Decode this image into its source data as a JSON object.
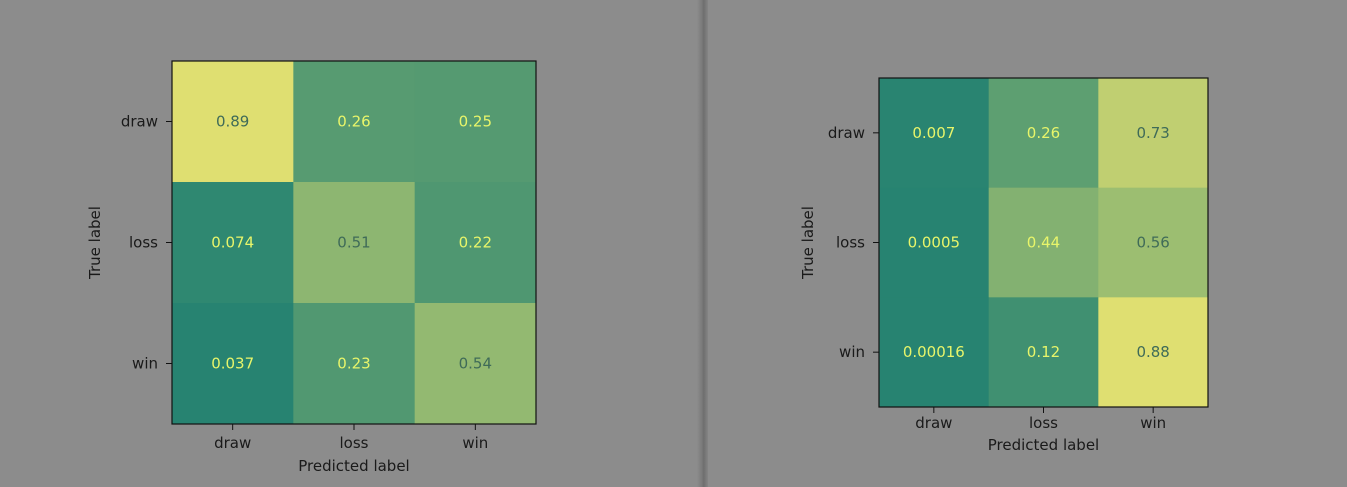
{
  "chart_data": [
    {
      "type": "heatmap",
      "title": "",
      "xlabel": "Predicted label",
      "ylabel": "True label",
      "x_categories": [
        "draw",
        "loss",
        "win"
      ],
      "y_categories": [
        "draw",
        "loss",
        "win"
      ],
      "values": [
        [
          0.89,
          0.26,
          0.25
        ],
        [
          0.074,
          0.51,
          0.22
        ],
        [
          0.037,
          0.23,
          0.54
        ]
      ],
      "labels": [
        [
          "0.89",
          "0.26",
          "0.25"
        ],
        [
          "0.074",
          "0.51",
          "0.22"
        ],
        [
          "0.037",
          "0.23",
          "0.54"
        ]
      ],
      "colormap": "summer",
      "grid": false
    },
    {
      "type": "heatmap",
      "title": "",
      "xlabel": "Predicted label",
      "ylabel": "True label",
      "x_categories": [
        "draw",
        "loss",
        "win"
      ],
      "y_categories": [
        "draw",
        "loss",
        "win"
      ],
      "values": [
        [
          0.007,
          0.26,
          0.73
        ],
        [
          0.0005,
          0.44,
          0.56
        ],
        [
          0.00016,
          0.12,
          0.88
        ]
      ],
      "labels": [
        [
          "0.007",
          "0.26",
          "0.73"
        ],
        [
          "0.0005",
          "0.44",
          "0.56"
        ],
        [
          "0.00016",
          "0.12",
          "0.88"
        ]
      ],
      "colormap": "summer",
      "grid": false
    }
  ]
}
